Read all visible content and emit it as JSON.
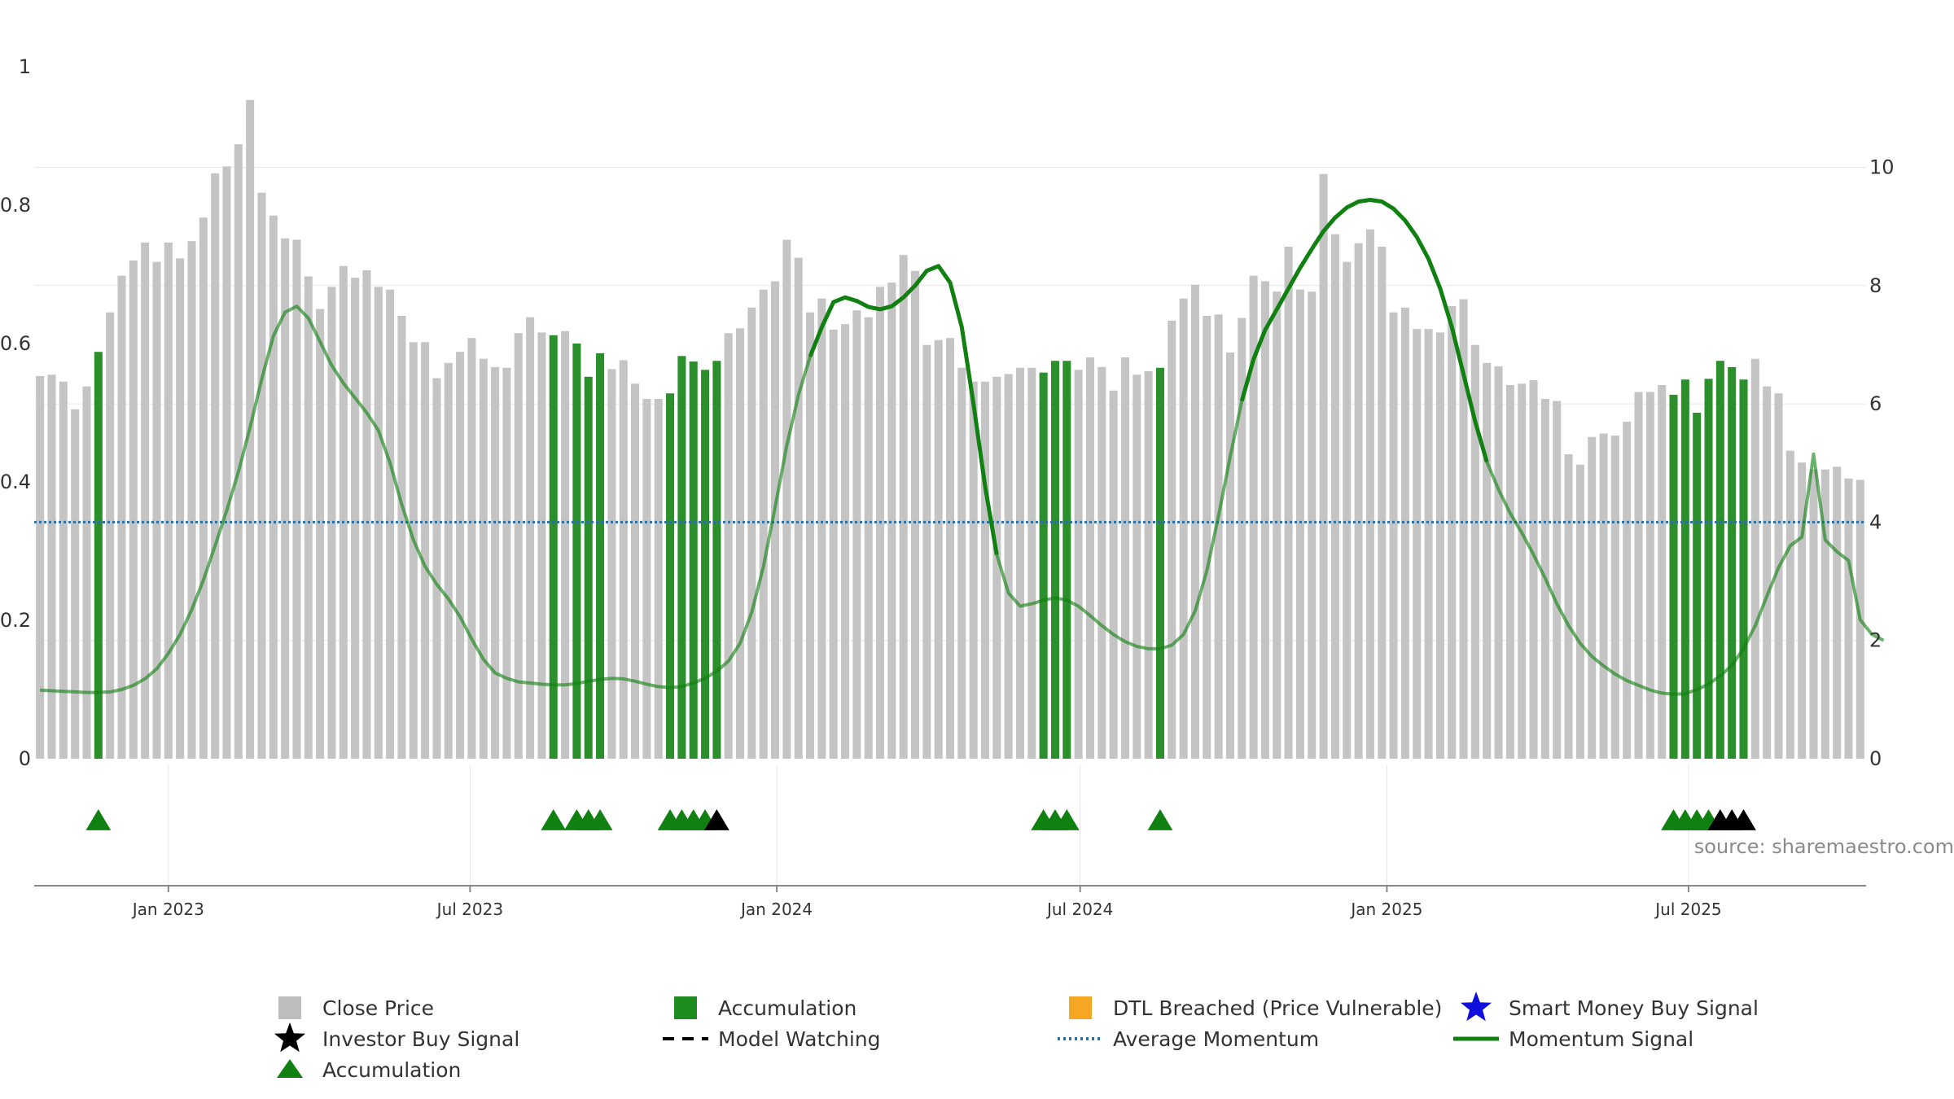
{
  "chart_data": {
    "type": "bar",
    "x_start": "2022-10-16",
    "x_step_days": 7,
    "left_axis": {
      "ylim": [
        0,
        1
      ],
      "ticks": [
        "0",
        "0.2",
        "0.4",
        "0.6",
        "0.8",
        "1"
      ]
    },
    "right_axis": {
      "ylim": [
        0,
        11.7
      ],
      "ticks": [
        "0",
        "2",
        "4",
        "6",
        "8",
        "10"
      ]
    },
    "x_ticks": [
      {
        "date": "2023-01-01",
        "label": "Jan 2023"
      },
      {
        "date": "2023-07-01",
        "label": "Jul 2023"
      },
      {
        "date": "2024-01-01",
        "label": "Jan 2024"
      },
      {
        "date": "2024-07-01",
        "label": "Jul 2024"
      },
      {
        "date": "2025-01-01",
        "label": "Jan 2025"
      },
      {
        "date": "2025-07-01",
        "label": "Jul 2025"
      }
    ],
    "close_price": [
      0.553,
      0.555,
      0.545,
      0.505,
      0.538,
      0.588,
      0.645,
      0.698,
      0.72,
      0.746,
      0.718,
      0.746,
      0.723,
      0.748,
      0.782,
      0.846,
      0.856,
      0.888,
      0.952,
      0.818,
      0.785,
      0.752,
      0.75,
      0.697,
      0.65,
      0.682,
      0.712,
      0.695,
      0.706,
      0.682,
      0.678,
      0.64,
      0.602,
      0.602,
      0.55,
      0.572,
      0.588,
      0.608,
      0.578,
      0.566,
      0.565,
      0.615,
      0.638,
      0.616,
      0.612,
      0.618,
      0.6,
      0.552,
      0.586,
      0.563,
      0.576,
      0.542,
      0.52,
      0.52,
      0.528,
      0.582,
      0.574,
      0.562,
      0.575,
      0.615,
      0.622,
      0.652,
      0.678,
      0.69,
      0.75,
      0.724,
      0.645,
      0.665,
      0.62,
      0.628,
      0.648,
      0.638,
      0.682,
      0.688,
      0.728,
      0.705,
      0.598,
      0.605,
      0.608,
      0.565,
      0.545,
      0.545,
      0.552,
      0.556,
      0.565,
      0.565,
      0.558,
      0.575,
      0.575,
      0.562,
      0.58,
      0.566,
      0.532,
      0.58,
      0.555,
      0.56,
      0.565,
      0.633,
      0.665,
      0.685,
      0.64,
      0.642,
      0.587,
      0.637,
      0.698,
      0.69,
      0.675,
      0.74,
      0.678,
      0.675,
      0.845,
      0.758,
      0.718,
      0.745,
      0.765,
      0.74,
      0.645,
      0.652,
      0.621,
      0.621,
      0.616,
      0.654,
      0.664,
      0.598,
      0.572,
      0.567,
      0.54,
      0.542,
      0.547,
      0.52,
      0.517,
      0.44,
      0.425,
      0.465,
      0.47,
      0.467,
      0.487,
      0.53,
      0.53,
      0.54,
      0.526,
      0.548,
      0.5,
      0.549,
      0.575,
      0.566,
      0.548,
      0.578,
      0.538,
      0.528,
      0.445,
      0.428,
      0.418,
      0.418,
      0.422,
      0.405,
      0.403
    ],
    "accumulation_bars": [
      5,
      44,
      46,
      47,
      48,
      54,
      55,
      56,
      57,
      58,
      86,
      87,
      88,
      96,
      140,
      141,
      142,
      143,
      144,
      145,
      146
    ],
    "accumulation_markers": [
      5,
      44,
      46,
      47,
      48,
      54,
      55,
      56,
      57,
      86,
      87,
      88,
      96,
      140,
      141,
      142,
      143
    ],
    "investor_buy_markers": [
      58,
      144,
      145,
      146
    ],
    "momentum_signal": [
      1.16,
      1.15,
      1.14,
      1.13,
      1.12,
      1.12,
      1.13,
      1.17,
      1.24,
      1.35,
      1.52,
      1.78,
      2.1,
      2.52,
      3.02,
      3.6,
      4.2,
      4.85,
      5.6,
      6.42,
      7.15,
      7.55,
      7.65,
      7.45,
      7.05,
      6.65,
      6.35,
      6.1,
      5.85,
      5.55,
      5.0,
      4.3,
      3.7,
      3.25,
      2.95,
      2.7,
      2.4,
      2.02,
      1.68,
      1.45,
      1.36,
      1.3,
      1.28,
      1.26,
      1.25,
      1.25,
      1.27,
      1.31,
      1.34,
      1.36,
      1.35,
      1.31,
      1.26,
      1.22,
      1.2,
      1.22,
      1.28,
      1.36,
      1.48,
      1.65,
      1.95,
      2.48,
      3.25,
      4.25,
      5.3,
      6.15,
      6.8,
      7.3,
      7.72,
      7.8,
      7.74,
      7.64,
      7.6,
      7.65,
      7.8,
      8.0,
      8.25,
      8.33,
      8.05,
      7.3,
      6.0,
      4.6,
      3.45,
      2.8,
      2.58,
      2.62,
      2.68,
      2.72,
      2.68,
      2.58,
      2.42,
      2.25,
      2.1,
      1.98,
      1.9,
      1.86,
      1.86,
      1.92,
      2.1,
      2.5,
      3.18,
      4.1,
      5.1,
      6.05,
      6.75,
      7.25,
      7.6,
      7.95,
      8.3,
      8.62,
      8.92,
      9.15,
      9.32,
      9.42,
      9.45,
      9.42,
      9.3,
      9.1,
      8.82,
      8.45,
      7.95,
      7.3,
      6.5,
      5.7,
      5.02,
      4.55,
      4.15,
      3.82,
      3.45,
      3.05,
      2.62,
      2.25,
      1.95,
      1.73,
      1.57,
      1.43,
      1.32,
      1.24,
      1.16,
      1.11,
      1.09,
      1.1,
      1.17,
      1.26,
      1.4,
      1.58,
      1.86,
      2.25,
      2.75,
      3.23,
      3.6,
      3.75,
      5.15,
      3.7,
      3.5,
      3.35,
      2.35,
      2.1,
      2.0
    ],
    "momentum_solid_ranges": [
      [
        66,
        82
      ],
      [
        103,
        124
      ]
    ],
    "average_momentum": 4.0,
    "legend": {
      "position": "bottom",
      "entries": [
        {
          "label": "Close Price",
          "symbol": "square",
          "color": "#bdbdbd"
        },
        {
          "label": "Accumulation",
          "symbol": "square",
          "color": "#1e8c1e"
        },
        {
          "label": "DTL Breached (Price Vulnerable)",
          "symbol": "square",
          "color": "#f5a623"
        },
        {
          "label": "Smart Money Buy Signal",
          "symbol": "star",
          "color": "#1010dd"
        },
        {
          "label": "Investor Buy Signal",
          "symbol": "star",
          "color": "#000000"
        },
        {
          "label": "Model Watching",
          "symbol": "dash",
          "color": "#000000"
        },
        {
          "label": "Average Momentum",
          "symbol": "dot",
          "color": "#2e6fa0"
        },
        {
          "label": "Momentum Signal",
          "symbol": "line",
          "color": "#108010"
        },
        {
          "label": "Accumulation",
          "symbol": "triangle",
          "color": "#108010"
        }
      ]
    },
    "annotation": "source: sharemaestro.com",
    "colors": {
      "close": "#c4c4c4",
      "accumulation": "#2b8f2b",
      "momentum": "#108010",
      "average": "#2e6fa0",
      "investor": "#000000"
    }
  }
}
